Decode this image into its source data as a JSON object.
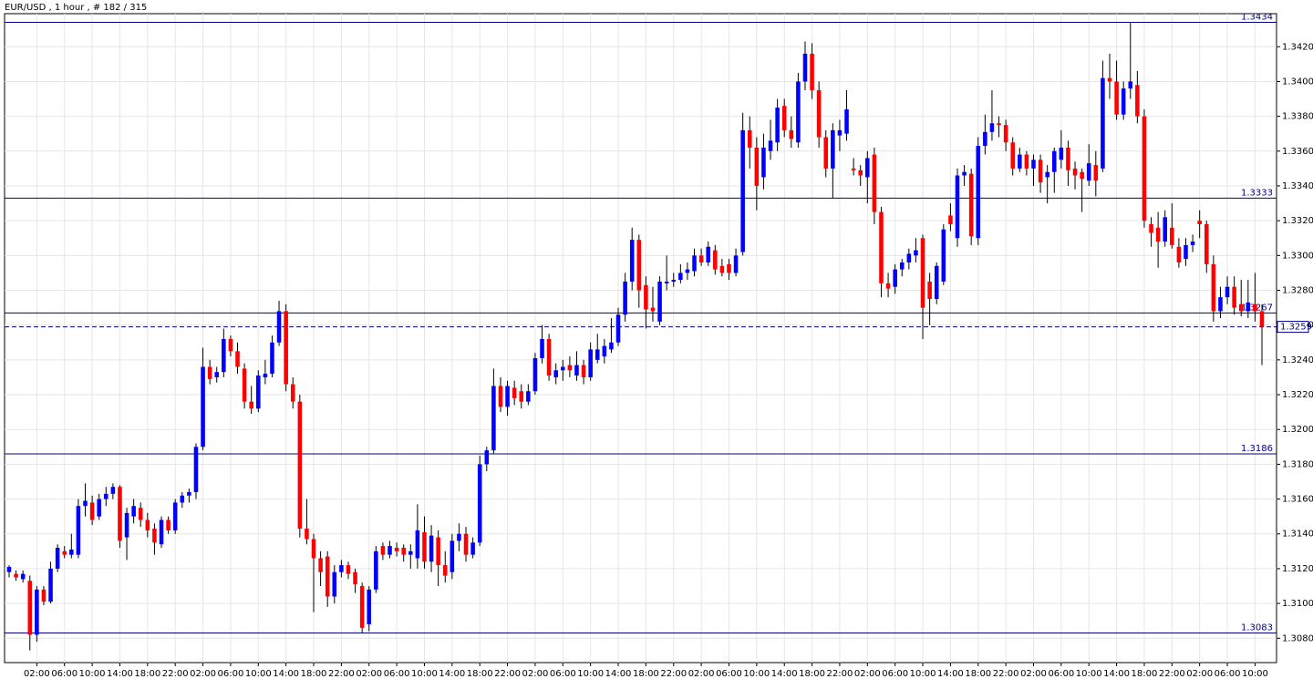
{
  "chart_data": {
    "type": "candlestick",
    "title": "EUR/USD , 1 hour , # 182 / 315",
    "up_color": "#0000ff",
    "down_color": "#ff0000",
    "wick_color": "#000000",
    "level_color": "#00008b",
    "grid": true,
    "ylim": [
      1.3066,
      1.3439
    ],
    "yticks": [
      {
        "value": 1.308,
        "label": "1.3080"
      },
      {
        "value": 1.31,
        "label": "1.3100"
      },
      {
        "value": 1.312,
        "label": "1.3120"
      },
      {
        "value": 1.314,
        "label": "1.3140"
      },
      {
        "value": 1.316,
        "label": "1.3160"
      },
      {
        "value": 1.318,
        "label": "1.3180"
      },
      {
        "value": 1.32,
        "label": "1.3200"
      },
      {
        "value": 1.322,
        "label": "1.3220"
      },
      {
        "value": 1.324,
        "label": "1.3240"
      },
      {
        "value": 1.326,
        "label": "1.3260"
      },
      {
        "value": 1.328,
        "label": "1.3280"
      },
      {
        "value": 1.33,
        "label": "1.3300"
      },
      {
        "value": 1.332,
        "label": "1.3320"
      },
      {
        "value": 1.334,
        "label": "1.3340"
      },
      {
        "value": 1.336,
        "label": "1.3360"
      },
      {
        "value": 1.338,
        "label": "1.3380"
      },
      {
        "value": 1.34,
        "label": "1.3400"
      },
      {
        "value": 1.342,
        "label": "1.3420"
      }
    ],
    "levels": [
      1.3434,
      1.3333,
      1.3267,
      1.3186,
      1.3083
    ],
    "bid": 1.3259,
    "categories": [
      null,
      null,
      null,
      null,
      "02:00",
      null,
      null,
      null,
      "06:00",
      null,
      null,
      null,
      "10:00",
      null,
      null,
      null,
      "14:00",
      null,
      null,
      null,
      "18:00",
      null,
      null,
      null,
      "22:00",
      null,
      null,
      null,
      "02:00",
      null,
      null,
      null,
      "06:00",
      null,
      null,
      null,
      "10:00",
      null,
      null,
      null,
      "14:00",
      null,
      null,
      null,
      "18:00",
      null,
      null,
      null,
      "22:00",
      null,
      null,
      null,
      "02:00",
      null,
      null,
      null,
      "06:00",
      null,
      null,
      null,
      "10:00",
      null,
      null,
      null,
      "14:00",
      null,
      null,
      null,
      "18:00",
      null,
      null,
      null,
      "22:00",
      null,
      null,
      null,
      "02:00",
      null,
      null,
      null,
      "06:00",
      null,
      null,
      null,
      "10:00",
      null,
      null,
      null,
      "14:00",
      null,
      null,
      null,
      "18:00",
      null,
      null,
      null,
      "22:00",
      null,
      null,
      null,
      "02:00",
      null,
      null,
      null,
      "06:00",
      null,
      null,
      null,
      "10:00",
      null,
      null,
      null,
      "14:00",
      null,
      null,
      null,
      "18:00",
      null,
      null,
      null,
      "22:00",
      null,
      null,
      null,
      "02:00",
      null,
      null,
      null,
      "06:00",
      null,
      null,
      null,
      "10:00",
      null,
      null,
      null,
      "14:00",
      null,
      null,
      null,
      "18:00",
      null,
      null,
      null,
      "22:00",
      null,
      null,
      null,
      "02:00",
      null,
      null,
      null,
      "06:00",
      null,
      null,
      null,
      "10:00",
      null,
      null,
      null,
      "14:00",
      null,
      null,
      null,
      "18:00",
      null,
      null,
      null,
      "22:00",
      null,
      null,
      null,
      "02:00",
      null,
      null,
      null,
      "06:00",
      null,
      null,
      null,
      "10:00",
      null
    ],
    "ohlc": [
      [
        1.3118,
        1.3122,
        1.3115,
        1.3121
      ],
      [
        1.3117,
        1.3119,
        1.3113,
        1.3115
      ],
      [
        1.3114,
        1.3119,
        1.3112,
        1.3117
      ],
      [
        1.3113,
        1.3116,
        1.3073,
        1.3082
      ],
      [
        1.3082,
        1.311,
        1.3078,
        1.3108
      ],
      [
        1.3108,
        1.311,
        1.3099,
        1.3101
      ],
      [
        1.3101,
        1.3124,
        1.31,
        1.312
      ],
      [
        1.312,
        1.3134,
        1.3118,
        1.3132
      ],
      [
        1.313,
        1.3133,
        1.3126,
        1.3128
      ],
      [
        1.3128,
        1.314,
        1.3126,
        1.3131
      ],
      [
        1.3128,
        1.316,
        1.3126,
        1.3156
      ],
      [
        1.3156,
        1.3169,
        1.315,
        1.3159
      ],
      [
        1.3158,
        1.3162,
        1.3145,
        1.3148
      ],
      [
        1.315,
        1.3163,
        1.3148,
        1.316
      ],
      [
        1.316,
        1.3167,
        1.3156,
        1.3163
      ],
      [
        1.3163,
        1.3169,
        1.316,
        1.3167
      ],
      [
        1.3167,
        1.3168,
        1.3132,
        1.3136
      ],
      [
        1.3138,
        1.3155,
        1.3125,
        1.3152
      ],
      [
        1.315,
        1.316,
        1.3146,
        1.3156
      ],
      [
        1.3155,
        1.3158,
        1.3144,
        1.3148
      ],
      [
        1.3148,
        1.3152,
        1.3138,
        1.3142
      ],
      [
        1.3143,
        1.3146,
        1.3128,
        1.3135
      ],
      [
        1.3134,
        1.315,
        1.3132,
        1.3148
      ],
      [
        1.3148,
        1.315,
        1.314,
        1.3142
      ],
      [
        1.3142,
        1.316,
        1.314,
        1.3158
      ],
      [
        1.3158,
        1.3164,
        1.3155,
        1.3162
      ],
      [
        1.3162,
        1.3166,
        1.3158,
        1.3164
      ],
      [
        1.3164,
        1.3192,
        1.316,
        1.319
      ],
      [
        1.319,
        1.3247,
        1.3188,
        1.3236
      ],
      [
        1.3236,
        1.324,
        1.3226,
        1.3229
      ],
      [
        1.323,
        1.3236,
        1.3227,
        1.3233
      ],
      [
        1.3233,
        1.3258,
        1.323,
        1.3252
      ],
      [
        1.3252,
        1.3254,
        1.3242,
        1.3245
      ],
      [
        1.3245,
        1.325,
        1.3232,
        1.3236
      ],
      [
        1.3235,
        1.3238,
        1.3212,
        1.3216
      ],
      [
        1.3216,
        1.3225,
        1.3209,
        1.3212
      ],
      [
        1.3212,
        1.3234,
        1.321,
        1.3231
      ],
      [
        1.323,
        1.324,
        1.3226,
        1.3232
      ],
      [
        1.3232,
        1.3254,
        1.323,
        1.325
      ],
      [
        1.325,
        1.3274,
        1.3248,
        1.3268
      ],
      [
        1.3268,
        1.3272,
        1.3222,
        1.3226
      ],
      [
        1.3226,
        1.323,
        1.3212,
        1.3216
      ],
      [
        1.3216,
        1.322,
        1.3138,
        1.3143
      ],
      [
        1.3143,
        1.316,
        1.3134,
        1.3137
      ],
      [
        1.3137,
        1.314,
        1.3095,
        1.3126
      ],
      [
        1.3126,
        1.313,
        1.311,
        1.3118
      ],
      [
        1.3127,
        1.313,
        1.3098,
        1.3104
      ],
      [
        1.3104,
        1.3122,
        1.31,
        1.3118
      ],
      [
        1.3118,
        1.3125,
        1.3115,
        1.3122
      ],
      [
        1.3122,
        1.3124,
        1.3114,
        1.3117
      ],
      [
        1.3118,
        1.312,
        1.3106,
        1.3111
      ],
      [
        1.311,
        1.3112,
        1.3083,
        1.3086
      ],
      [
        1.3088,
        1.311,
        1.3084,
        1.3108
      ],
      [
        1.3108,
        1.3133,
        1.3106,
        1.313
      ],
      [
        1.3133,
        1.3135,
        1.3125,
        1.3128
      ],
      [
        1.3128,
        1.3136,
        1.3126,
        1.3133
      ],
      [
        1.3132,
        1.3135,
        1.3127,
        1.313
      ],
      [
        1.3132,
        1.3134,
        1.3124,
        1.3128
      ],
      [
        1.3128,
        1.3134,
        1.312,
        1.313
      ],
      [
        1.3126,
        1.3157,
        1.312,
        1.3142
      ],
      [
        1.3141,
        1.315,
        1.312,
        1.3124
      ],
      [
        1.3124,
        1.3145,
        1.3118,
        1.3139
      ],
      [
        1.3138,
        1.3142,
        1.311,
        1.3122
      ],
      [
        1.3122,
        1.313,
        1.3112,
        1.3116
      ],
      [
        1.3118,
        1.314,
        1.3114,
        1.3136
      ],
      [
        1.3136,
        1.3146,
        1.313,
        1.314
      ],
      [
        1.314,
        1.3144,
        1.3124,
        1.3128
      ],
      [
        1.3128,
        1.3138,
        1.3126,
        1.3135
      ],
      [
        1.3135,
        1.3185,
        1.3133,
        1.318
      ],
      [
        1.318,
        1.319,
        1.3176,
        1.3188
      ],
      [
        1.3188,
        1.3235,
        1.3186,
        1.3225
      ],
      [
        1.3225,
        1.323,
        1.321,
        1.3213
      ],
      [
        1.3213,
        1.3228,
        1.3208,
        1.3225
      ],
      [
        1.3224,
        1.3228,
        1.3214,
        1.3218
      ],
      [
        1.3222,
        1.3226,
        1.3212,
        1.3216
      ],
      [
        1.3216,
        1.3226,
        1.3214,
        1.3222
      ],
      [
        1.3222,
        1.3244,
        1.322,
        1.3241
      ],
      [
        1.3241,
        1.326,
        1.3238,
        1.3252
      ],
      [
        1.3252,
        1.3255,
        1.3228,
        1.3231
      ],
      [
        1.323,
        1.3238,
        1.3226,
        1.3234
      ],
      [
        1.3234,
        1.324,
        1.3228,
        1.3236
      ],
      [
        1.3237,
        1.3242,
        1.323,
        1.3234
      ],
      [
        1.3231,
        1.3245,
        1.3228,
        1.3237
      ],
      [
        1.3237,
        1.324,
        1.3226,
        1.323
      ],
      [
        1.323,
        1.325,
        1.3228,
        1.3246
      ],
      [
        1.324,
        1.3255,
        1.3238,
        1.3246
      ],
      [
        1.3242,
        1.3252,
        1.3238,
        1.3248
      ],
      [
        1.3246,
        1.3264,
        1.3244,
        1.325
      ],
      [
        1.325,
        1.327,
        1.3248,
        1.3266
      ],
      [
        1.3266,
        1.329,
        1.3262,
        1.3285
      ],
      [
        1.3285,
        1.3316,
        1.328,
        1.3309
      ],
      [
        1.3309,
        1.3312,
        1.327,
        1.328
      ],
      [
        1.3283,
        1.3288,
        1.3258,
        1.3269
      ],
      [
        1.327,
        1.3282,
        1.3262,
        1.3268
      ],
      [
        1.3262,
        1.3288,
        1.326,
        1.3285
      ],
      [
        1.3284,
        1.33,
        1.328,
        1.3285
      ],
      [
        1.3285,
        1.329,
        1.3282,
        1.3286
      ],
      [
        1.3286,
        1.3295,
        1.3284,
        1.329
      ],
      [
        1.329,
        1.3296,
        1.3286,
        1.3292
      ],
      [
        1.3291,
        1.3304,
        1.3288,
        1.33
      ],
      [
        1.33,
        1.3304,
        1.3294,
        1.3296
      ],
      [
        1.3296,
        1.3308,
        1.3294,
        1.3305
      ],
      [
        1.3303,
        1.3306,
        1.3289,
        1.3292
      ],
      [
        1.3294,
        1.3298,
        1.3288,
        1.329
      ],
      [
        1.3295,
        1.3298,
        1.3286,
        1.329
      ],
      [
        1.329,
        1.3304,
        1.3288,
        1.33
      ],
      [
        1.3302,
        1.3382,
        1.33,
        1.3372
      ],
      [
        1.3372,
        1.338,
        1.335,
        1.3362
      ],
      [
        1.3362,
        1.3368,
        1.3326,
        1.334
      ],
      [
        1.3345,
        1.337,
        1.3338,
        1.3362
      ],
      [
        1.336,
        1.3378,
        1.3355,
        1.3366
      ],
      [
        1.3365,
        1.339,
        1.336,
        1.3385
      ],
      [
        1.3386,
        1.339,
        1.3368,
        1.3372
      ],
      [
        1.3372,
        1.338,
        1.3362,
        1.3367
      ],
      [
        1.3365,
        1.3405,
        1.3362,
        1.34
      ],
      [
        1.34,
        1.3423,
        1.3395,
        1.3416
      ],
      [
        1.3416,
        1.3422,
        1.339,
        1.3395
      ],
      [
        1.3395,
        1.34,
        1.3362,
        1.3368
      ],
      [
        1.3368,
        1.3372,
        1.3345,
        1.335
      ],
      [
        1.335,
        1.3376,
        1.3333,
        1.3372
      ],
      [
        1.3369,
        1.3378,
        1.336,
        1.3372
      ],
      [
        1.337,
        1.3395,
        1.3366,
        1.3384
      ],
      [
        1.335,
        1.3356,
        1.3346,
        1.3349
      ],
      [
        1.3349,
        1.3352,
        1.334,
        1.3346
      ],
      [
        1.3345,
        1.336,
        1.333,
        1.3356
      ],
      [
        1.3358,
        1.3362,
        1.3318,
        1.3325
      ],
      [
        1.3325,
        1.3328,
        1.3276,
        1.3284
      ],
      [
        1.3284,
        1.329,
        1.3276,
        1.3281
      ],
      [
        1.3282,
        1.3295,
        1.3278,
        1.3292
      ],
      [
        1.3292,
        1.3298,
        1.3288,
        1.3296
      ],
      [
        1.3296,
        1.3304,
        1.3292,
        1.3301
      ],
      [
        1.33,
        1.331,
        1.3296,
        1.3303
      ],
      [
        1.331,
        1.3312,
        1.3252,
        1.327
      ],
      [
        1.3285,
        1.329,
        1.326,
        1.3275
      ],
      [
        1.3275,
        1.3296,
        1.3272,
        1.3294
      ],
      [
        1.3285,
        1.3318,
        1.3283,
        1.3315
      ],
      [
        1.3323,
        1.333,
        1.3314,
        1.3318
      ],
      [
        1.331,
        1.335,
        1.3305,
        1.3346
      ],
      [
        1.3346,
        1.3352,
        1.334,
        1.3348
      ],
      [
        1.3347,
        1.335,
        1.3306,
        1.3311
      ],
      [
        1.331,
        1.3368,
        1.3306,
        1.3363
      ],
      [
        1.3363,
        1.3381,
        1.3358,
        1.3371
      ],
      [
        1.3371,
        1.3395,
        1.3366,
        1.3376
      ],
      [
        1.3376,
        1.338,
        1.3368,
        1.3375
      ],
      [
        1.3375,
        1.3378,
        1.336,
        1.3365
      ],
      [
        1.3365,
        1.3368,
        1.3346,
        1.335
      ],
      [
        1.335,
        1.3362,
        1.3348,
        1.3358
      ],
      [
        1.3358,
        1.336,
        1.3346,
        1.335
      ],
      [
        1.335,
        1.3358,
        1.334,
        1.3355
      ],
      [
        1.3355,
        1.3358,
        1.3336,
        1.3342
      ],
      [
        1.3345,
        1.3352,
        1.333,
        1.3348
      ],
      [
        1.3348,
        1.3362,
        1.3336,
        1.336
      ],
      [
        1.3355,
        1.3372,
        1.335,
        1.3362
      ],
      [
        1.3362,
        1.3366,
        1.334,
        1.3349
      ],
      [
        1.335,
        1.3354,
        1.3338,
        1.3346
      ],
      [
        1.3348,
        1.335,
        1.3325,
        1.3344
      ],
      [
        1.3343,
        1.3364,
        1.334,
        1.3353
      ],
      [
        1.3352,
        1.336,
        1.3334,
        1.3343
      ],
      [
        1.335,
        1.3412,
        1.3348,
        1.3402
      ],
      [
        1.3402,
        1.3416,
        1.339,
        1.34
      ],
      [
        1.34,
        1.3412,
        1.3378,
        1.3381
      ],
      [
        1.3381,
        1.34,
        1.3378,
        1.3396
      ],
      [
        1.3396,
        1.3434,
        1.339,
        1.34
      ],
      [
        1.3398,
        1.3406,
        1.3376,
        1.338
      ],
      [
        1.338,
        1.3384,
        1.3316,
        1.332
      ],
      [
        1.3318,
        1.3322,
        1.3305,
        1.3313
      ],
      [
        1.3316,
        1.3325,
        1.3293,
        1.3308
      ],
      [
        1.3308,
        1.3326,
        1.3305,
        1.3322
      ],
      [
        1.3316,
        1.333,
        1.3304,
        1.3306
      ],
      [
        1.3305,
        1.331,
        1.3293,
        1.3296
      ],
      [
        1.3298,
        1.331,
        1.3294,
        1.3306
      ],
      [
        1.3306,
        1.3312,
        1.3302,
        1.3308
      ],
      [
        1.332,
        1.3326,
        1.331,
        1.3318
      ],
      [
        1.3318,
        1.332,
        1.329,
        1.3295
      ],
      [
        1.3295,
        1.33,
        1.3262,
        1.3268
      ],
      [
        1.3268,
        1.3282,
        1.3264,
        1.3276
      ],
      [
        1.3276,
        1.3288,
        1.3272,
        1.3282
      ],
      [
        1.3282,
        1.3288,
        1.3266,
        1.327
      ],
      [
        1.3272,
        1.3286,
        1.3265,
        1.3268
      ],
      [
        1.3268,
        1.3286,
        1.3264,
        1.3273
      ],
      [
        1.3272,
        1.329,
        1.3262,
        1.3268
      ],
      [
        1.3268,
        1.3272,
        1.3237,
        1.3259
      ]
    ]
  }
}
